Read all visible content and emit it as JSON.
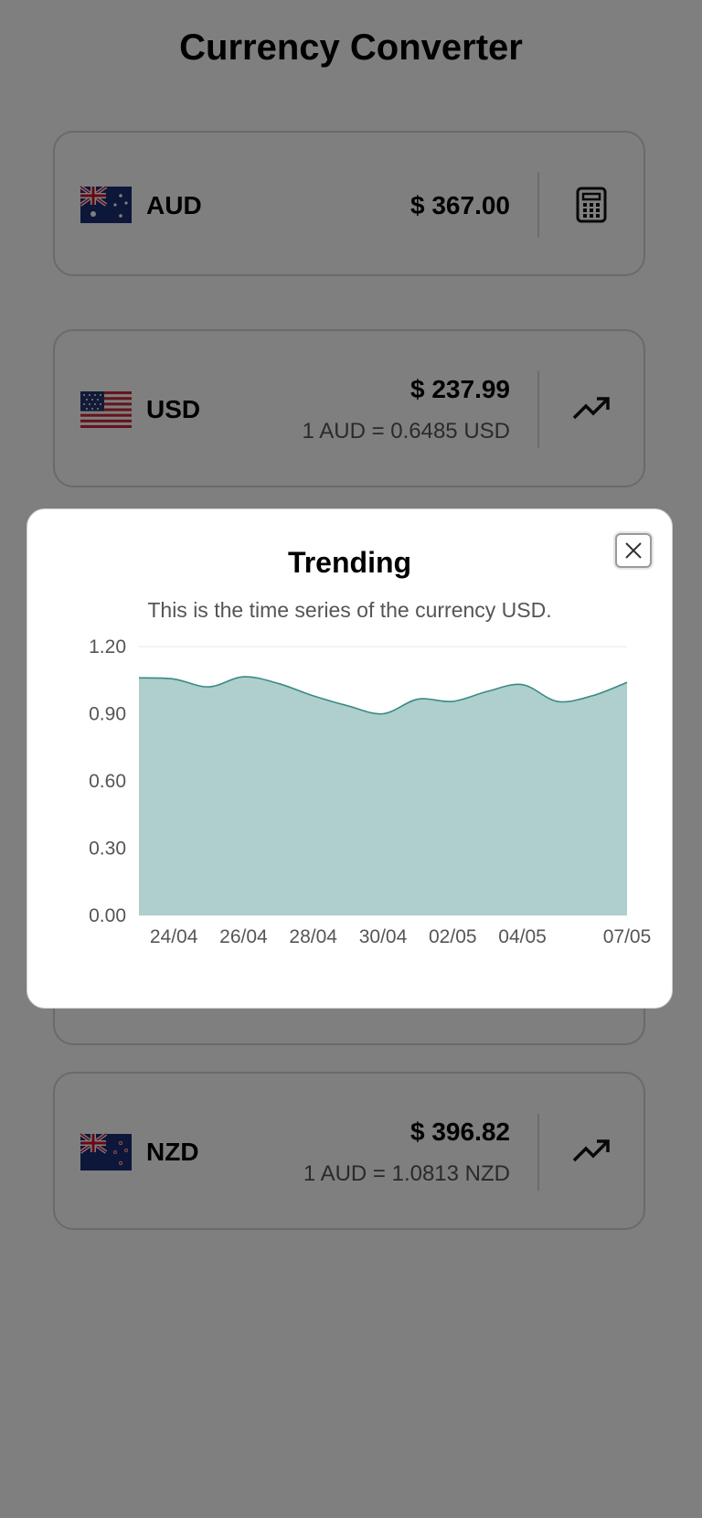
{
  "app": {
    "title": "Currency Converter"
  },
  "cards": [
    {
      "code": "AUD",
      "flag": "australia-flag",
      "amount": "$ 367.00",
      "rate": "",
      "action_icon": "calculator-icon"
    },
    {
      "code": "USD",
      "flag": "usa-flag",
      "amount": "$ 237.99",
      "rate": "1 AUD = 0.6485 USD",
      "action_icon": "trending-up-icon"
    },
    {
      "code": "NZD",
      "flag": "new-zealand-flag",
      "amount": "$ 396.82",
      "rate": "1 AUD = 1.0813 NZD",
      "action_icon": "trending-up-icon"
    }
  ],
  "modal": {
    "title": "Trending",
    "subtitle": "This is the time series of the currency USD.",
    "close_icon": "close-icon"
  },
  "chart_data": {
    "type": "area",
    "x": [
      "23/04",
      "24/04",
      "25/04",
      "26/04",
      "27/04",
      "28/04",
      "29/04",
      "30/04",
      "01/05",
      "02/05",
      "03/05",
      "04/05",
      "05/05",
      "06/05",
      "07/05"
    ],
    "values": [
      1.06,
      1.055,
      1.02,
      1.065,
      1.035,
      0.98,
      0.935,
      0.9,
      0.965,
      0.955,
      1.0,
      1.03,
      0.955,
      0.98,
      1.04
    ],
    "x_tick_labels": [
      "24/04",
      "26/04",
      "28/04",
      "30/04",
      "02/05",
      "04/05",
      "07/05"
    ],
    "y_tick_labels": [
      "0.00",
      "0.30",
      "0.60",
      "0.90",
      "1.20"
    ],
    "ylim": [
      0,
      1.2
    ],
    "grid": true,
    "legend": "none",
    "title": "",
    "xlabel": "",
    "ylabel": "",
    "colors": {
      "fill": "#aecfcc",
      "line": "#3a8a84",
      "grid": "#e3ecea"
    }
  }
}
